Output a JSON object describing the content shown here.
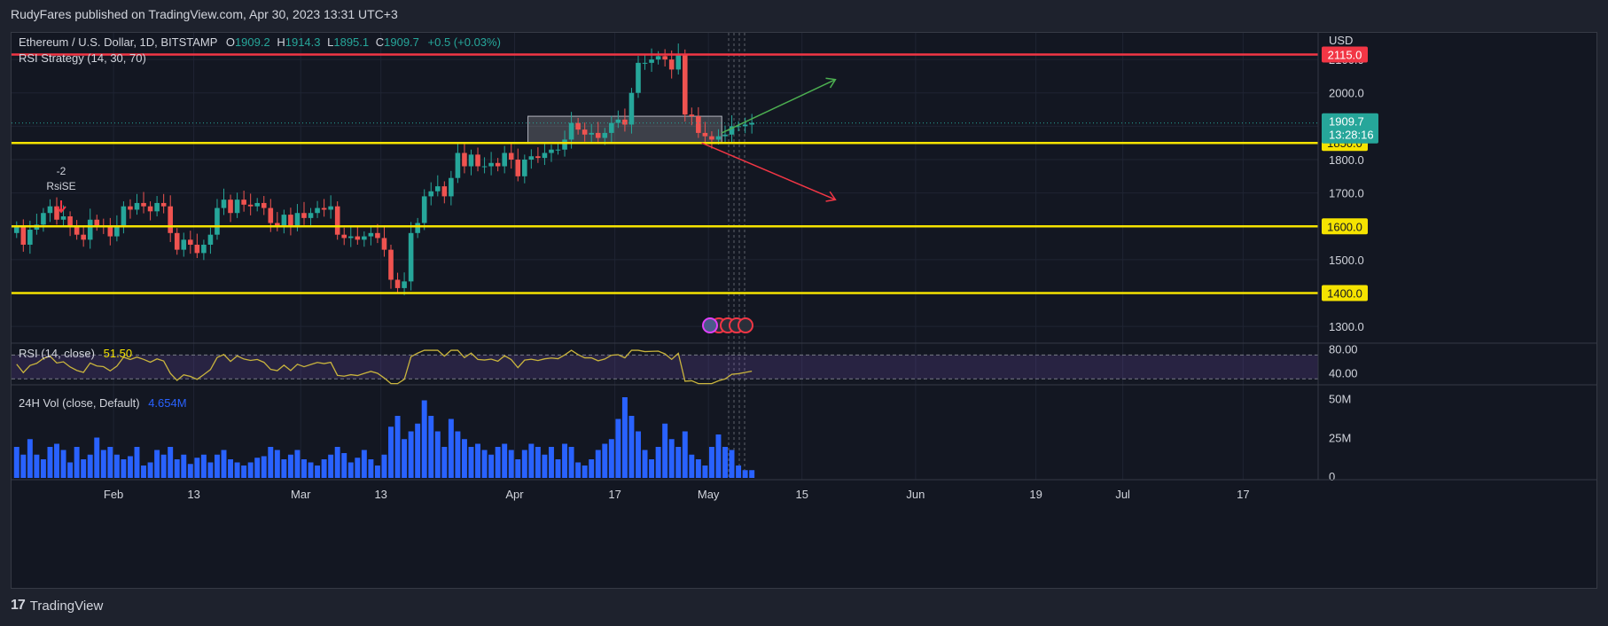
{
  "header": {
    "publisher": "RudyFares published on TradingView.com, Apr 30, 2023 13:31 UTC+3"
  },
  "footer": {
    "brand": "TradingView",
    "logo": "17"
  },
  "legend": {
    "symbol": "Ethereum / U.S. Dollar, 1D, BITSTAMP",
    "o_label": "O",
    "o": "1909.2",
    "h_label": "H",
    "h": "1914.3",
    "l_label": "L",
    "l": "1895.1",
    "c_label": "C",
    "c": "1909.7",
    "change": "+0.5 (+0.03%)",
    "strategy": "RSI Strategy (14, 30, 70)"
  },
  "signal": {
    "qty": "-2",
    "name": "RsiSE"
  },
  "colors": {
    "up": "#26a69a",
    "down": "#ef5350",
    "level": "#f5e300",
    "resistance": "#f23645",
    "volume": "#2962ff",
    "rsi": "#c9b43d",
    "arrow_up": "#4caf50",
    "arrow_down": "#f23645",
    "background": "#131722",
    "grid": "#1f2433"
  },
  "chart_data": {
    "type": "candlestick",
    "title": "Ethereum / U.S. Dollar, 1D, BITSTAMP",
    "currency": "USD",
    "y_ticks": [
      "1300.0",
      "1400.0",
      "1500.0",
      "1600.0",
      "1700.0",
      "1800.0",
      "1850.0",
      "1900.0",
      "2000.0",
      "2100.0",
      "2115.0"
    ],
    "ylim": [
      1250,
      2180
    ],
    "x_ticks": [
      "Feb",
      "13",
      "Mar",
      "13",
      "Apr",
      "17",
      "May",
      "15",
      "Jun",
      "19",
      "Jul",
      "17"
    ],
    "x_start": "2023-01-17",
    "last_price": "1909.7",
    "countdown": "13:28:16",
    "horizontal_levels": [
      {
        "price": 2115,
        "label": "2115.0",
        "role": "resistance"
      },
      {
        "price": 1850,
        "label": "1850.0",
        "role": "support"
      },
      {
        "price": 1600,
        "label": "1600.0",
        "role": "support"
      },
      {
        "price": 1400,
        "label": "1400.0",
        "role": "support"
      }
    ],
    "box": {
      "from_day": 77,
      "to_day": 106,
      "low": 1850,
      "high": 1930
    },
    "projections": [
      {
        "direction": "up",
        "from_day": 106,
        "from_price": 1880,
        "to_day": 123,
        "to_price": 2040
      },
      {
        "direction": "down",
        "from_day": 103,
        "from_price": 1850,
        "to_day": 123,
        "to_price": 1680
      }
    ],
    "closes": [
      1600,
      1545,
      1590,
      1605,
      1640,
      1660,
      1620,
      1630,
      1598,
      1575,
      1560,
      1620,
      1602,
      1598,
      1570,
      1600,
      1660,
      1650,
      1670,
      1660,
      1645,
      1670,
      1660,
      1580,
      1530,
      1560,
      1545,
      1520,
      1545,
      1575,
      1655,
      1680,
      1640,
      1680,
      1665,
      1660,
      1670,
      1655,
      1610,
      1600,
      1635,
      1600,
      1640,
      1625,
      1640,
      1655,
      1650,
      1660,
      1575,
      1565,
      1570,
      1560,
      1570,
      1580,
      1565,
      1530,
      1440,
      1415,
      1435,
      1580,
      1610,
      1690,
      1705,
      1720,
      1690,
      1745,
      1820,
      1780,
      1815,
      1780,
      1780,
      1790,
      1780,
      1820,
      1800,
      1750,
      1800,
      1810,
      1805,
      1820,
      1830,
      1830,
      1860,
      1910,
      1890,
      1875,
      1880,
      1865,
      1880,
      1910,
      1920,
      1905,
      2000,
      2090,
      2090,
      2100,
      2110,
      2100,
      2070,
      2115,
      1935,
      1930,
      1880,
      1870,
      1860,
      1870,
      1875,
      1900,
      1900,
      1905,
      1910
    ],
    "volumes_m": [
      20,
      15,
      25,
      15,
      12,
      20,
      22,
      18,
      10,
      20,
      12,
      15,
      26,
      18,
      20,
      15,
      12,
      14,
      20,
      8,
      10,
      18,
      15,
      20,
      12,
      15,
      9,
      13,
      15,
      10,
      15,
      18,
      12,
      10,
      8,
      10,
      13,
      14,
      20,
      18,
      12,
      15,
      18,
      12,
      10,
      8,
      12,
      15,
      20,
      16,
      10,
      13,
      18,
      12,
      8,
      15,
      33,
      40,
      25,
      30,
      35,
      50,
      40,
      30,
      20,
      38,
      30,
      25,
      20,
      22,
      18,
      15,
      20,
      22,
      18,
      12,
      18,
      22,
      20,
      15,
      20,
      12,
      22,
      20,
      10,
      8,
      12,
      18,
      22,
      25,
      38,
      52,
      40,
      30,
      18,
      12,
      20,
      35,
      25,
      20,
      30,
      15,
      12,
      8,
      20,
      28,
      20,
      18,
      8,
      5,
      5
    ],
    "rsi_name": "RSI (14, close)",
    "rsi_value": "51.50",
    "rsi_ticks": [
      "80.00",
      "40.00"
    ],
    "rsi_band": [
      30,
      70
    ],
    "vol_name": "24H Vol (close, Default)",
    "vol_value": "4.654M",
    "vol_ticks": [
      "50M",
      "25M",
      "0"
    ]
  }
}
